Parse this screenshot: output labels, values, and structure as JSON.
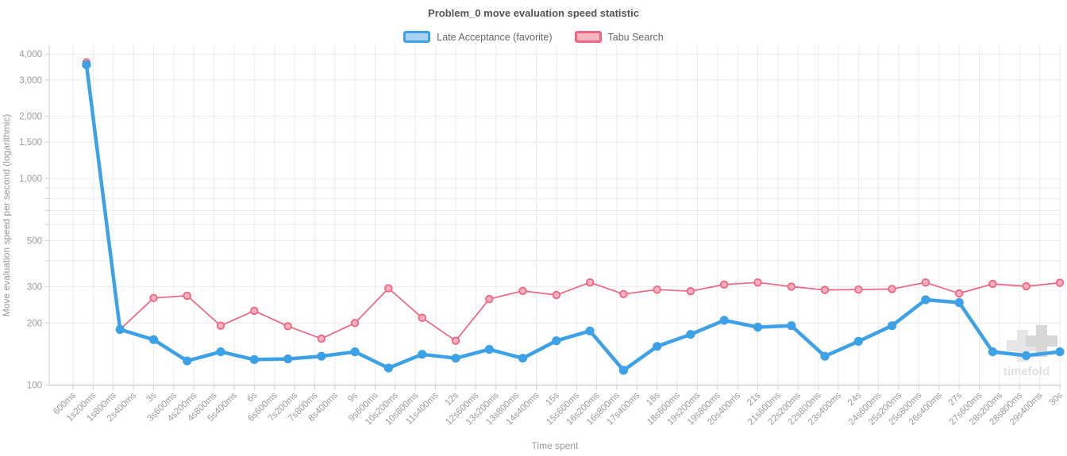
{
  "title": "Problem_0 move evaluation speed statistic",
  "legend": {
    "items": [
      {
        "label": "Late Acceptance (favorite)",
        "fill": "#a9d3f1",
        "border": "#3ca1e6"
      },
      {
        "label": "Tabu Search",
        "fill": "#f8b6c3",
        "border": "#ef647f"
      }
    ]
  },
  "watermark": {
    "text": "timefold"
  },
  "chart_data": {
    "type": "line",
    "title": "Problem_0 move evaluation speed statistic",
    "xlabel": "Time spent",
    "ylabel": "Move evaluation speed per second (logarithmic)",
    "y_scale": "log",
    "ylim": [
      100,
      4400
    ],
    "grid": true,
    "legend_position": "top",
    "y_ticks": [
      {
        "value": 4000,
        "label": "4,000"
      },
      {
        "value": 3000,
        "label": "3,000"
      },
      {
        "value": 2000,
        "label": "2,000"
      },
      {
        "value": 1500,
        "label": "1,500"
      },
      {
        "value": 1000,
        "label": "1,000"
      },
      {
        "value": 500,
        "label": "500"
      },
      {
        "value": 300,
        "label": "300"
      },
      {
        "value": 200,
        "label": "200"
      },
      {
        "value": 100,
        "label": "100"
      }
    ],
    "y_gridlines": [
      4000,
      3000,
      2000,
      1500,
      1000,
      900,
      800,
      700,
      600,
      500,
      400,
      300,
      200,
      100
    ],
    "x_tick_labels": [
      "600ms",
      "1s200ms",
      "1s800ms",
      "2s400ms",
      "3s",
      "3s600ms",
      "4s200ms",
      "4s800ms",
      "5s400ms",
      "6s",
      "6s600ms",
      "7s200ms",
      "7s800ms",
      "8s400ms",
      "9s",
      "9s600ms",
      "10s200ms",
      "10s800ms",
      "11s400ms",
      "12s",
      "12s600ms",
      "13s200ms",
      "13s800ms",
      "14s400ms",
      "15s",
      "15s600ms",
      "16s200ms",
      "16s800ms",
      "17s400ms",
      "18s",
      "18s600ms",
      "19s200ms",
      "19s800ms",
      "20s400ms",
      "21s",
      "21s600ms",
      "22s200ms",
      "22s800ms",
      "23s400ms",
      "24s",
      "24s600ms",
      "25s200ms",
      "25s800ms",
      "26s400ms",
      "27s",
      "27s600ms",
      "28s200ms",
      "28s800ms",
      "29s400ms",
      "30s"
    ],
    "x_tick_step_seconds": 0.6,
    "x_seconds": [
      1,
      2,
      3,
      4,
      5,
      6,
      7,
      8,
      9,
      10,
      11,
      12,
      13,
      14,
      15,
      16,
      17,
      18,
      19,
      20,
      21,
      22,
      23,
      24,
      25,
      26,
      27,
      28,
      29,
      30
    ],
    "series": [
      {
        "name": "Late Acceptance (favorite)",
        "color": "#3ca1e6",
        "line_width": 4.5,
        "point_radius": 5.6,
        "point_fill": "#3ca1e6",
        "point_border": "",
        "values": [
          3550,
          186,
          166,
          131,
          145,
          133,
          134,
          138,
          145,
          121,
          141,
          135,
          149,
          135,
          164,
          183,
          118,
          154,
          176,
          206,
          191,
          194,
          138,
          163,
          194,
          259,
          251,
          145,
          139,
          145
        ]
      },
      {
        "name": "Tabu Search",
        "color": "#ef647f",
        "line_width": 1.7,
        "point_radius": 4.3,
        "point_fill": "#f8afc0",
        "point_border": "#ef647f",
        "values": [
          3650,
          186,
          264,
          271,
          194,
          229,
          193,
          168,
          200,
          294,
          212,
          164,
          261,
          286,
          273,
          314,
          276,
          290,
          285,
          307,
          314,
          300,
          289,
          290,
          292,
          314,
          278,
          309,
          301,
          313
        ]
      }
    ]
  }
}
